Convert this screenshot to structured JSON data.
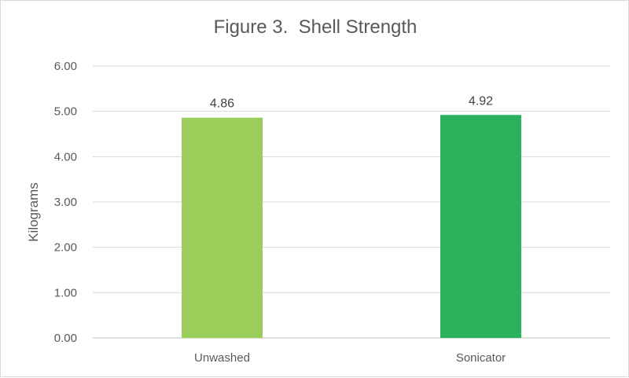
{
  "chart_data": {
    "type": "bar",
    "title": "Figure 3.  Shell Strength",
    "xlabel": "",
    "ylabel": "Kilograms",
    "categories": [
      "Unwashed",
      "Sonicator"
    ],
    "values": [
      4.86,
      4.92
    ],
    "data_labels": [
      "4.86",
      "4.92"
    ],
    "bar_colors": [
      "#9acd5a",
      "#2ab25c"
    ],
    "ylim": [
      0,
      6
    ],
    "yticks": [
      "0.00",
      "1.00",
      "2.00",
      "3.00",
      "4.00",
      "5.00",
      "6.00"
    ],
    "grid": true,
    "legend": "none"
  }
}
